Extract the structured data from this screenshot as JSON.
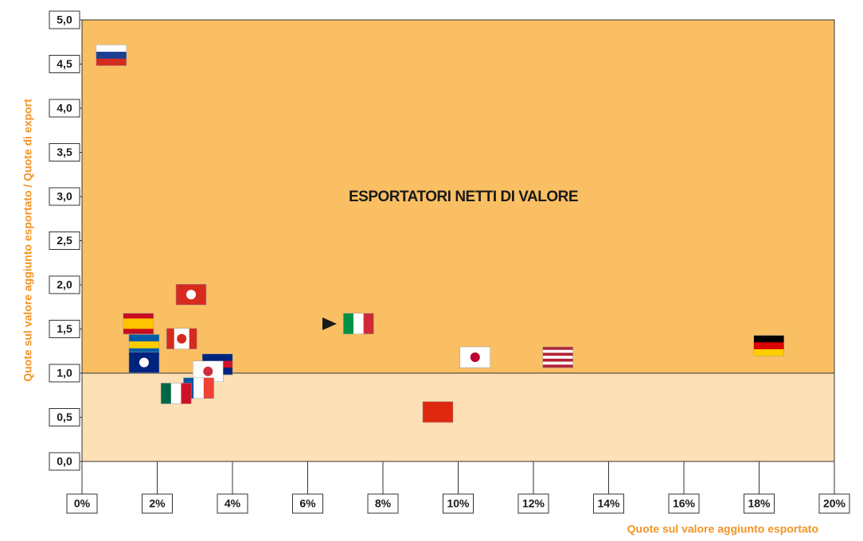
{
  "chart_data": {
    "type": "scatter",
    "annotation": "ESPORTATORI NETTI DI VALORE",
    "xlabel": "Quote sul valore aggiunto esportato",
    "ylabel": "Quote sul valore aggiunto esportato / Quote di export",
    "xlim": [
      0,
      20
    ],
    "ylim": [
      0,
      5
    ],
    "xticks": [
      {
        "value": 0,
        "label": "0%"
      },
      {
        "value": 2,
        "label": "2%"
      },
      {
        "value": 4,
        "label": "4%"
      },
      {
        "value": 6,
        "label": "6%"
      },
      {
        "value": 8,
        "label": "8%"
      },
      {
        "value": 10,
        "label": "10%"
      },
      {
        "value": 12,
        "label": "12%"
      },
      {
        "value": 14,
        "label": "14%"
      },
      {
        "value": 16,
        "label": "16%"
      },
      {
        "value": 18,
        "label": "18%"
      },
      {
        "value": 20,
        "label": "20%"
      }
    ],
    "yticks": [
      {
        "value": 0,
        "label": "0,0"
      },
      {
        "value": 0.5,
        "label": "0,5"
      },
      {
        "value": 1,
        "label": "1,0"
      },
      {
        "value": 1.5,
        "label": "1,5"
      },
      {
        "value": 2,
        "label": "2,0"
      },
      {
        "value": 2.5,
        "label": "2,5"
      },
      {
        "value": 3,
        "label": "3,0"
      },
      {
        "value": 3.5,
        "label": "3,5"
      },
      {
        "value": 4,
        "label": "4,0"
      },
      {
        "value": 4.5,
        "label": "4,5"
      },
      {
        "value": 5,
        "label": "5,0"
      }
    ],
    "threshold": 1,
    "colors": {
      "above": "#fbbf63",
      "below": "#fde0b5"
    },
    "x": [
      0.78,
      2.9,
      1.5,
      2.65,
      1.65,
      1.65,
      3.6,
      3.35,
      3.1,
      2.5,
      7.35,
      10.45,
      12.65,
      18.26,
      9.46
    ],
    "values": [
      4.6,
      1.89,
      1.56,
      1.39,
      1.32,
      1.12,
      1.1,
      1.02,
      0.83,
      0.77,
      1.56,
      1.18,
      1.18,
      1.31,
      0.56
    ],
    "markers": [
      {
        "dir": "h",
        "colors": [
          "#ffffff",
          "#1c3f94",
          "#d52b1e"
        ]
      },
      {
        "dir": "h",
        "colors": [
          "#d52b1e"
        ],
        "emblem": "#ffffff"
      },
      {
        "dir": "h",
        "colors": [
          "#c60b1e",
          "#ffc400",
          "#ffc400",
          "#c60b1e"
        ]
      },
      {
        "dir": "v",
        "colors": [
          "#d52b1e",
          "#ffffff",
          "#ffffff",
          "#d52b1e"
        ],
        "emblem": "#d52b1e"
      },
      {
        "dir": "h",
        "colors": [
          "#005ba6",
          "#fecb00",
          "#005ba6"
        ]
      },
      {
        "dir": "h",
        "colors": [
          "#00247d"
        ],
        "emblem": "#ffffff"
      },
      {
        "dir": "h",
        "colors": [
          "#00247d",
          "#cf142b",
          "#00247d"
        ]
      },
      {
        "dir": "h",
        "colors": [
          "#ffffff"
        ],
        "emblem": "#cd2e3a"
      },
      {
        "dir": "v",
        "colors": [
          "#0055a4",
          "#ffffff",
          "#ef4135"
        ]
      },
      {
        "dir": "v",
        "colors": [
          "#006847",
          "#ffffff",
          "#ce1126"
        ]
      },
      {
        "dir": "v",
        "colors": [
          "#009246",
          "#ffffff",
          "#ce2b37"
        ]
      },
      {
        "dir": "h",
        "colors": [
          "#ffffff"
        ],
        "emblem": "#bc002d"
      },
      {
        "dir": "h",
        "colors": [
          "#b22234",
          "#ffffff",
          "#b22234",
          "#ffffff",
          "#b22234",
          "#ffffff",
          "#b22234"
        ]
      },
      {
        "dir": "h",
        "colors": [
          "#000000",
          "#dd0000",
          "#ffce00"
        ]
      },
      {
        "dir": "h",
        "colors": [
          "#de2910"
        ]
      }
    ]
  }
}
